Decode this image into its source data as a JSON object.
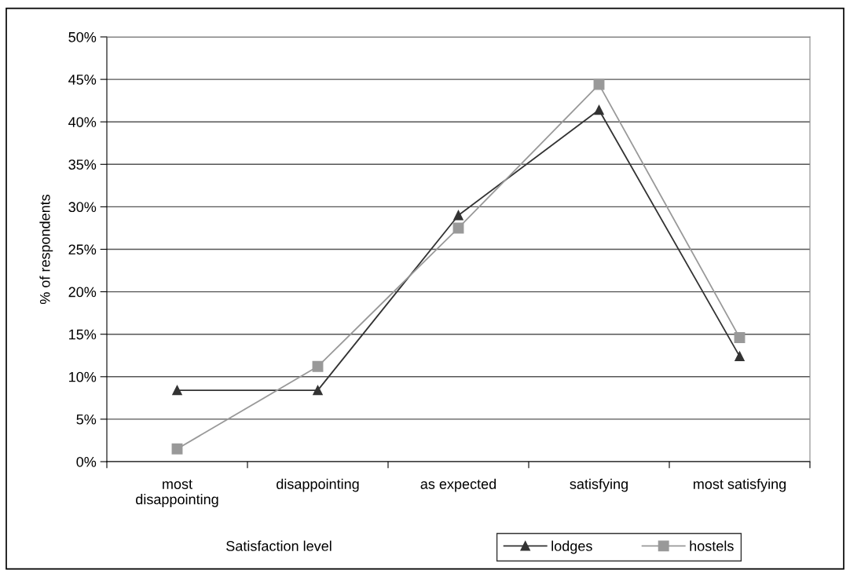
{
  "chart_data": {
    "type": "line",
    "xlabel": "Satisfaction level",
    "ylabel": "% of respondents",
    "categories": [
      "most\ndisappointing",
      "disappointing",
      "as expected",
      "satisfying",
      "most satisfying"
    ],
    "series": [
      {
        "name": "lodges",
        "color": "#333333",
        "marker": "triangle",
        "values": [
          8.4,
          8.4,
          29.0,
          41.4,
          12.4
        ]
      },
      {
        "name": "hostels",
        "color": "#999999",
        "marker": "square",
        "values": [
          1.5,
          11.2,
          27.5,
          44.4,
          14.6
        ]
      }
    ],
    "ylim": [
      0,
      50
    ],
    "yticks": [
      {
        "value": 0,
        "label": "0%"
      },
      {
        "value": 5,
        "label": "5%"
      },
      {
        "value": 10,
        "label": "10%"
      },
      {
        "value": 15,
        "label": "15%"
      },
      {
        "value": 20,
        "label": "20%"
      },
      {
        "value": 25,
        "label": "25%"
      },
      {
        "value": 30,
        "label": "30%"
      },
      {
        "value": 35,
        "label": "35%"
      },
      {
        "value": 40,
        "label": "40%"
      },
      {
        "value": 45,
        "label": "45%"
      },
      {
        "value": 50,
        "label": "50%"
      }
    ],
    "grid": "y",
    "legend": "bottom right",
    "line_style": "solid"
  }
}
